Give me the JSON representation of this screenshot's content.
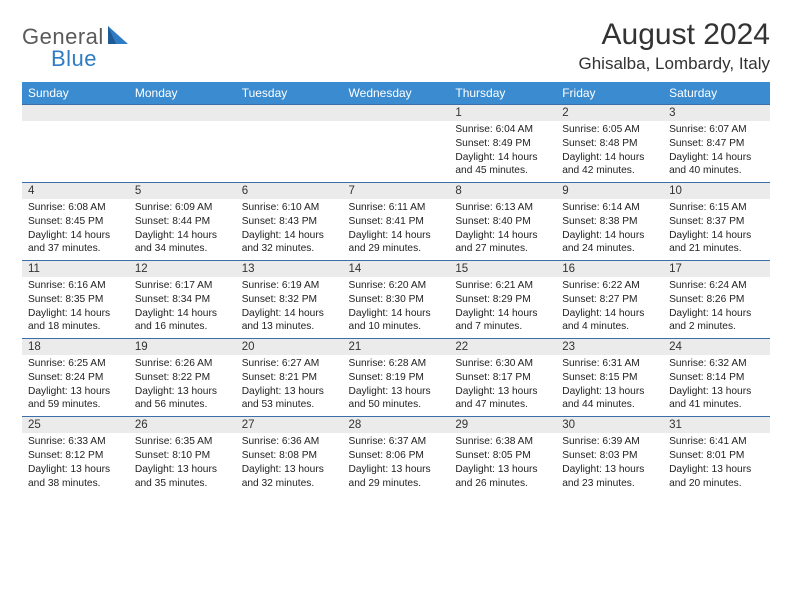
{
  "logo": {
    "text1": "General",
    "text2": "Blue"
  },
  "title": "August 2024",
  "location": "Ghisalba, Lombardy, Italy",
  "colors": {
    "header_bg": "#3b8bd0",
    "header_fg": "#ffffff",
    "daynum_bg": "#ebebeb",
    "rule": "#3b6fa8",
    "logo_general": "#5a5a5a",
    "logo_blue": "#2f7cc4"
  },
  "day_headers": [
    "Sunday",
    "Monday",
    "Tuesday",
    "Wednesday",
    "Thursday",
    "Friday",
    "Saturday"
  ],
  "weeks": [
    {
      "nums": [
        "",
        "",
        "",
        "",
        "1",
        "2",
        "3"
      ],
      "info": [
        [],
        [],
        [],
        [],
        [
          "Sunrise: 6:04 AM",
          "Sunset: 8:49 PM",
          "Daylight: 14 hours",
          "and 45 minutes."
        ],
        [
          "Sunrise: 6:05 AM",
          "Sunset: 8:48 PM",
          "Daylight: 14 hours",
          "and 42 minutes."
        ],
        [
          "Sunrise: 6:07 AM",
          "Sunset: 8:47 PM",
          "Daylight: 14 hours",
          "and 40 minutes."
        ]
      ]
    },
    {
      "nums": [
        "4",
        "5",
        "6",
        "7",
        "8",
        "9",
        "10"
      ],
      "info": [
        [
          "Sunrise: 6:08 AM",
          "Sunset: 8:45 PM",
          "Daylight: 14 hours",
          "and 37 minutes."
        ],
        [
          "Sunrise: 6:09 AM",
          "Sunset: 8:44 PM",
          "Daylight: 14 hours",
          "and 34 minutes."
        ],
        [
          "Sunrise: 6:10 AM",
          "Sunset: 8:43 PM",
          "Daylight: 14 hours",
          "and 32 minutes."
        ],
        [
          "Sunrise: 6:11 AM",
          "Sunset: 8:41 PM",
          "Daylight: 14 hours",
          "and 29 minutes."
        ],
        [
          "Sunrise: 6:13 AM",
          "Sunset: 8:40 PM",
          "Daylight: 14 hours",
          "and 27 minutes."
        ],
        [
          "Sunrise: 6:14 AM",
          "Sunset: 8:38 PM",
          "Daylight: 14 hours",
          "and 24 minutes."
        ],
        [
          "Sunrise: 6:15 AM",
          "Sunset: 8:37 PM",
          "Daylight: 14 hours",
          "and 21 minutes."
        ]
      ]
    },
    {
      "nums": [
        "11",
        "12",
        "13",
        "14",
        "15",
        "16",
        "17"
      ],
      "info": [
        [
          "Sunrise: 6:16 AM",
          "Sunset: 8:35 PM",
          "Daylight: 14 hours",
          "and 18 minutes."
        ],
        [
          "Sunrise: 6:17 AM",
          "Sunset: 8:34 PM",
          "Daylight: 14 hours",
          "and 16 minutes."
        ],
        [
          "Sunrise: 6:19 AM",
          "Sunset: 8:32 PM",
          "Daylight: 14 hours",
          "and 13 minutes."
        ],
        [
          "Sunrise: 6:20 AM",
          "Sunset: 8:30 PM",
          "Daylight: 14 hours",
          "and 10 minutes."
        ],
        [
          "Sunrise: 6:21 AM",
          "Sunset: 8:29 PM",
          "Daylight: 14 hours",
          "and 7 minutes."
        ],
        [
          "Sunrise: 6:22 AM",
          "Sunset: 8:27 PM",
          "Daylight: 14 hours",
          "and 4 minutes."
        ],
        [
          "Sunrise: 6:24 AM",
          "Sunset: 8:26 PM",
          "Daylight: 14 hours",
          "and 2 minutes."
        ]
      ]
    },
    {
      "nums": [
        "18",
        "19",
        "20",
        "21",
        "22",
        "23",
        "24"
      ],
      "info": [
        [
          "Sunrise: 6:25 AM",
          "Sunset: 8:24 PM",
          "Daylight: 13 hours",
          "and 59 minutes."
        ],
        [
          "Sunrise: 6:26 AM",
          "Sunset: 8:22 PM",
          "Daylight: 13 hours",
          "and 56 minutes."
        ],
        [
          "Sunrise: 6:27 AM",
          "Sunset: 8:21 PM",
          "Daylight: 13 hours",
          "and 53 minutes."
        ],
        [
          "Sunrise: 6:28 AM",
          "Sunset: 8:19 PM",
          "Daylight: 13 hours",
          "and 50 minutes."
        ],
        [
          "Sunrise: 6:30 AM",
          "Sunset: 8:17 PM",
          "Daylight: 13 hours",
          "and 47 minutes."
        ],
        [
          "Sunrise: 6:31 AM",
          "Sunset: 8:15 PM",
          "Daylight: 13 hours",
          "and 44 minutes."
        ],
        [
          "Sunrise: 6:32 AM",
          "Sunset: 8:14 PM",
          "Daylight: 13 hours",
          "and 41 minutes."
        ]
      ]
    },
    {
      "nums": [
        "25",
        "26",
        "27",
        "28",
        "29",
        "30",
        "31"
      ],
      "info": [
        [
          "Sunrise: 6:33 AM",
          "Sunset: 8:12 PM",
          "Daylight: 13 hours",
          "and 38 minutes."
        ],
        [
          "Sunrise: 6:35 AM",
          "Sunset: 8:10 PM",
          "Daylight: 13 hours",
          "and 35 minutes."
        ],
        [
          "Sunrise: 6:36 AM",
          "Sunset: 8:08 PM",
          "Daylight: 13 hours",
          "and 32 minutes."
        ],
        [
          "Sunrise: 6:37 AM",
          "Sunset: 8:06 PM",
          "Daylight: 13 hours",
          "and 29 minutes."
        ],
        [
          "Sunrise: 6:38 AM",
          "Sunset: 8:05 PM",
          "Daylight: 13 hours",
          "and 26 minutes."
        ],
        [
          "Sunrise: 6:39 AM",
          "Sunset: 8:03 PM",
          "Daylight: 13 hours",
          "and 23 minutes."
        ],
        [
          "Sunrise: 6:41 AM",
          "Sunset: 8:01 PM",
          "Daylight: 13 hours",
          "and 20 minutes."
        ]
      ]
    }
  ]
}
